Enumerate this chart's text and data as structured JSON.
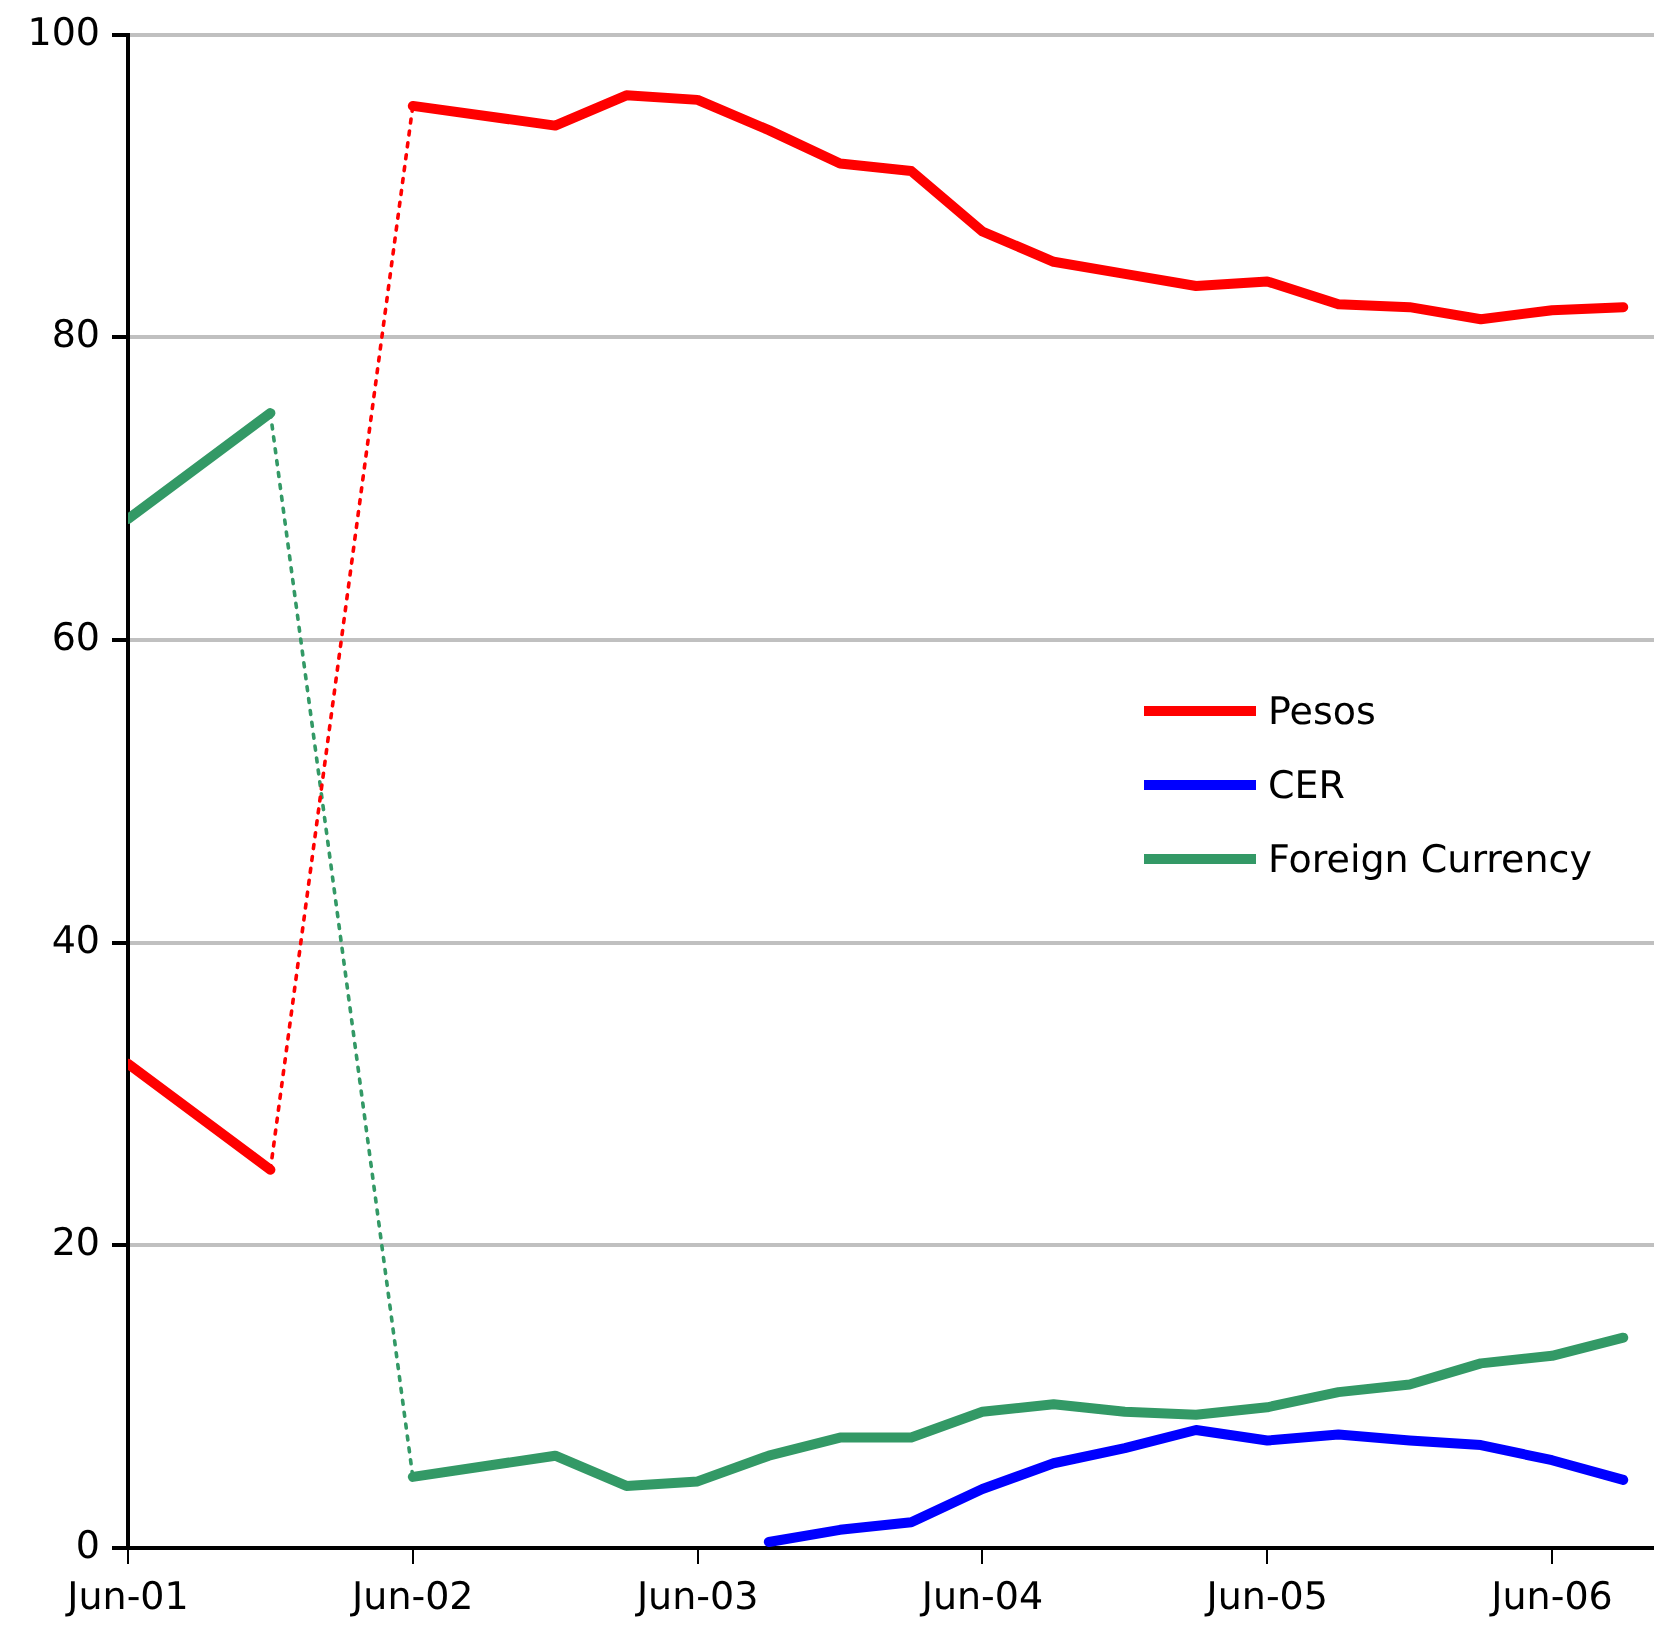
{
  "chart_data": {
    "type": "line",
    "xlim": [
      "2001-06",
      "2006-10-10"
    ],
    "ylim": [
      0,
      100
    ],
    "xticks": [
      {
        "value": "2001-06",
        "label": "Jun-01"
      },
      {
        "value": "2002-06",
        "label": "Jun-02"
      },
      {
        "value": "2003-06",
        "label": "Jun-03"
      },
      {
        "value": "2004-06",
        "label": "Jun-04"
      },
      {
        "value": "2005-06",
        "label": "Jun-05"
      },
      {
        "value": "2006-06",
        "label": "Jun-06"
      }
    ],
    "yticks": [
      0,
      20,
      40,
      60,
      80,
      100
    ],
    "grid": "y",
    "legend": "right",
    "marker": "none",
    "series": [
      {
        "name": "Pesos",
        "color": "#ff0000",
        "line_style": "solid",
        "x": [
          "2001-06",
          "2001-12",
          "2002-03",
          "2002-06",
          "2002-12",
          "2003-03",
          "2003-06",
          "2003-09",
          "2003-12",
          "2004-03",
          "2004-06",
          "2004-09",
          "2004-12",
          "2005-03",
          "2005-06",
          "2005-09",
          "2005-12",
          "2006-03",
          "2006-06",
          "2006-09"
        ],
        "values": [
          32,
          25,
          null,
          95.3,
          94,
          96,
          95.7,
          93.7,
          91.5,
          91,
          87,
          85,
          84.2,
          83.4,
          83.7,
          82.2,
          82,
          81.2,
          81.8,
          82
        ]
      },
      {
        "name": "CER",
        "color": "#0000ff",
        "line_style": "solid",
        "x": [
          "2003-09",
          "2003-12",
          "2004-03",
          "2004-06",
          "2004-09",
          "2004-12",
          "2005-03",
          "2005-06",
          "2005-09",
          "2005-12",
          "2006-03",
          "2006-06",
          "2006-09"
        ],
        "values": [
          0.4,
          1.2,
          1.7,
          3.9,
          5.6,
          6.6,
          7.8,
          7.1,
          7.5,
          7.1,
          6.8,
          5.8,
          4.5
        ]
      },
      {
        "name": "Foreign Currency",
        "color": "#339966",
        "line_style": "solid",
        "x": [
          "2001-06",
          "2001-12",
          "2002-03",
          "2002-06",
          "2002-12",
          "2003-03",
          "2003-06",
          "2003-09",
          "2003-12",
          "2004-03",
          "2004-06",
          "2004-09",
          "2004-12",
          "2005-03",
          "2005-06",
          "2005-09",
          "2005-12",
          "2006-03",
          "2006-06",
          "2006-09"
        ],
        "values": [
          68,
          75,
          null,
          4.7,
          6.1,
          4.1,
          4.4,
          6.1,
          7.3,
          7.3,
          9,
          9.5,
          9,
          8.8,
          9.3,
          10.3,
          10.8,
          12.2,
          12.7,
          13.9
        ]
      }
    ]
  }
}
